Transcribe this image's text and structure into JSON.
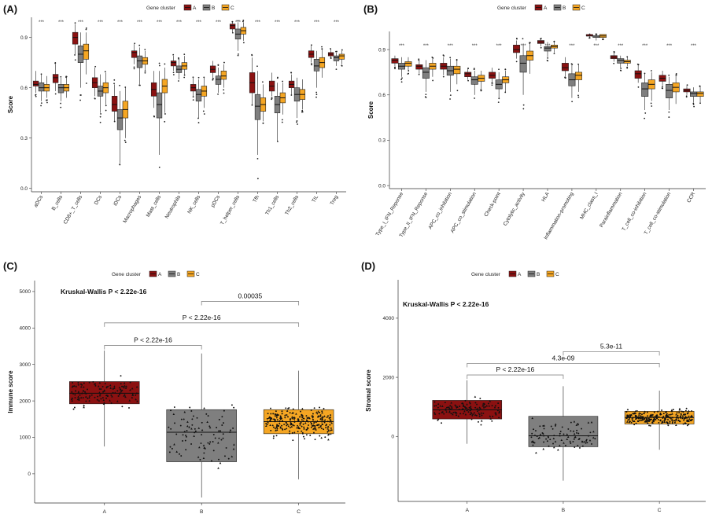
{
  "colors": {
    "A": "#8B1111",
    "B": "#7F7F7F",
    "C": "#F5A623"
  },
  "legend": {
    "title": "Gene cluster",
    "labels": [
      "A",
      "B",
      "C"
    ]
  },
  "chart_data": [
    {
      "panel": "(A)",
      "type": "box",
      "ylabel": "Score",
      "ylim": [
        -0.02,
        1.02
      ],
      "yticks": [
        "0.0",
        "0.3",
        "0.6",
        "0.9"
      ],
      "significance": "***",
      "categories": [
        "aDCs",
        "B_cells",
        "CD8+_T_cells",
        "DCs",
        "iDCs",
        "Macrophages",
        "Mast_cells",
        "Neutrophils",
        "NK_cells",
        "pDCs",
        "T_helper_cells",
        "Tfh",
        "Th1_cells",
        "Th2_cells",
        "TIL",
        "Treg"
      ],
      "series": [
        {
          "name": "A",
          "boxes": [
            [
              0.57,
              0.61,
              0.62,
              0.64,
              0.7
            ],
            [
              0.58,
              0.63,
              0.66,
              0.68,
              0.74
            ],
            [
              0.8,
              0.86,
              0.9,
              0.93,
              0.98
            ],
            [
              0.55,
              0.6,
              0.63,
              0.66,
              0.72
            ],
            [
              0.4,
              0.46,
              0.5,
              0.55,
              0.62
            ],
            [
              0.74,
              0.78,
              0.81,
              0.82,
              0.86
            ],
            [
              0.48,
              0.55,
              0.59,
              0.63,
              0.7
            ],
            [
              0.7,
              0.73,
              0.75,
              0.76,
              0.79
            ],
            [
              0.55,
              0.58,
              0.6,
              0.62,
              0.66
            ],
            [
              0.66,
              0.69,
              0.71,
              0.73,
              0.76
            ],
            [
              0.93,
              0.95,
              0.97,
              0.98,
              0.99
            ],
            [
              0.5,
              0.57,
              0.63,
              0.69,
              0.78
            ],
            [
              0.55,
              0.58,
              0.61,
              0.64,
              0.69
            ],
            [
              0.56,
              0.6,
              0.62,
              0.64,
              0.68
            ],
            [
              0.75,
              0.78,
              0.8,
              0.82,
              0.85
            ],
            [
              0.78,
              0.79,
              0.8,
              0.81,
              0.83
            ]
          ]
        },
        {
          "name": "B",
          "boxes": [
            [
              0.52,
              0.58,
              0.6,
              0.63,
              0.68
            ],
            [
              0.52,
              0.57,
              0.6,
              0.62,
              0.66
            ],
            [
              0.6,
              0.75,
              0.8,
              0.85,
              0.93
            ],
            [
              0.45,
              0.55,
              0.58,
              0.61,
              0.68
            ],
            [
              0.15,
              0.35,
              0.42,
              0.47,
              0.58
            ],
            [
              0.62,
              0.72,
              0.76,
              0.79,
              0.84
            ],
            [
              0.2,
              0.42,
              0.5,
              0.57,
              0.7
            ],
            [
              0.65,
              0.69,
              0.71,
              0.73,
              0.77
            ],
            [
              0.42,
              0.52,
              0.56,
              0.59,
              0.65
            ],
            [
              0.57,
              0.62,
              0.65,
              0.67,
              0.72
            ],
            [
              0.82,
              0.89,
              0.92,
              0.95,
              0.99
            ],
            [
              0.2,
              0.41,
              0.49,
              0.56,
              0.7
            ],
            [
              0.28,
              0.45,
              0.5,
              0.55,
              0.63
            ],
            [
              0.42,
              0.52,
              0.56,
              0.6,
              0.66
            ],
            [
              0.6,
              0.7,
              0.73,
              0.77,
              0.82
            ],
            [
              0.73,
              0.76,
              0.78,
              0.79,
              0.81
            ]
          ]
        },
        {
          "name": "C",
          "boxes": [
            [
              0.54,
              0.58,
              0.6,
              0.62,
              0.67
            ],
            [
              0.54,
              0.58,
              0.6,
              0.62,
              0.66
            ],
            [
              0.68,
              0.77,
              0.82,
              0.86,
              0.93
            ],
            [
              0.5,
              0.57,
              0.6,
              0.63,
              0.69
            ],
            [
              0.3,
              0.42,
              0.47,
              0.52,
              0.6
            ],
            [
              0.7,
              0.74,
              0.76,
              0.78,
              0.82
            ],
            [
              0.45,
              0.57,
              0.61,
              0.65,
              0.72
            ],
            [
              0.68,
              0.71,
              0.73,
              0.75,
              0.79
            ],
            [
              0.48,
              0.55,
              0.58,
              0.61,
              0.66
            ],
            [
              0.6,
              0.65,
              0.67,
              0.7,
              0.74
            ],
            [
              0.88,
              0.92,
              0.94,
              0.96,
              0.99
            ],
            [
              0.4,
              0.46,
              0.5,
              0.54,
              0.62
            ],
            [
              0.44,
              0.51,
              0.54,
              0.57,
              0.63
            ],
            [
              0.47,
              0.53,
              0.56,
              0.59,
              0.65
            ],
            [
              0.66,
              0.72,
              0.75,
              0.78,
              0.83
            ],
            [
              0.74,
              0.77,
              0.79,
              0.8,
              0.82
            ]
          ]
        }
      ]
    },
    {
      "panel": "(B)",
      "type": "box",
      "ylabel": "Score",
      "ylim": [
        -0.02,
        1.02
      ],
      "yticks": [
        "0.0",
        "0.3",
        "0.6",
        "0.9"
      ],
      "significance": "***",
      "categories": [
        "Type_I_IFN_Reponse",
        "Type_II_IFN_Reponse",
        "APC_co_inhibition",
        "APC_co_stimulation",
        "Check-point",
        "Cytolytic_activity",
        "HLA",
        "Inflammation-promoting",
        "MHC_class_I",
        "Parainflammation",
        "T_cell_co-inhibition",
        "T_cell_co-stimulation",
        "CCR"
      ],
      "series": [
        {
          "name": "A",
          "boxes": [
            [
              0.79,
              0.81,
              0.83,
              0.84,
              0.86
            ],
            [
              0.74,
              0.77,
              0.79,
              0.8,
              0.83
            ],
            [
              0.73,
              0.77,
              0.79,
              0.81,
              0.85
            ],
            [
              0.7,
              0.72,
              0.74,
              0.75,
              0.77
            ],
            [
              0.68,
              0.71,
              0.73,
              0.75,
              0.78
            ],
            [
              0.84,
              0.88,
              0.9,
              0.93,
              0.96
            ],
            [
              0.92,
              0.94,
              0.95,
              0.96,
              0.97
            ],
            [
              0.72,
              0.76,
              0.78,
              0.81,
              0.85
            ],
            [
              0.98,
              0.99,
              0.99,
              1.0,
              1.0
            ],
            [
              0.82,
              0.84,
              0.85,
              0.86,
              0.88
            ],
            [
              0.68,
              0.71,
              0.74,
              0.76,
              0.8
            ],
            [
              0.66,
              0.69,
              0.71,
              0.73,
              0.76
            ],
            [
              0.6,
              0.62,
              0.63,
              0.64,
              0.66
            ]
          ]
        },
        {
          "name": "B",
          "boxes": [
            [
              0.72,
              0.77,
              0.79,
              0.81,
              0.85
            ],
            [
              0.62,
              0.71,
              0.75,
              0.78,
              0.83
            ],
            [
              0.62,
              0.73,
              0.76,
              0.79,
              0.84
            ],
            [
              0.6,
              0.67,
              0.7,
              0.72,
              0.76
            ],
            [
              0.58,
              0.64,
              0.67,
              0.7,
              0.75
            ],
            [
              0.6,
              0.75,
              0.81,
              0.86,
              0.94
            ],
            [
              0.85,
              0.89,
              0.91,
              0.92,
              0.95
            ],
            [
              0.58,
              0.66,
              0.7,
              0.74,
              0.8
            ],
            [
              0.96,
              0.98,
              0.99,
              0.99,
              1.0
            ],
            [
              0.78,
              0.81,
              0.83,
              0.84,
              0.86
            ],
            [
              0.5,
              0.59,
              0.64,
              0.68,
              0.74
            ],
            [
              0.5,
              0.58,
              0.63,
              0.67,
              0.72
            ],
            [
              0.55,
              0.59,
              0.61,
              0.62,
              0.65
            ]
          ]
        },
        {
          "name": "C",
          "boxes": [
            [
              0.76,
              0.79,
              0.81,
              0.82,
              0.85
            ],
            [
              0.72,
              0.77,
              0.79,
              0.81,
              0.84
            ],
            [
              0.67,
              0.74,
              0.77,
              0.79,
              0.83
            ],
            [
              0.64,
              0.69,
              0.71,
              0.73,
              0.76
            ],
            [
              0.62,
              0.68,
              0.7,
              0.72,
              0.76
            ],
            [
              0.74,
              0.83,
              0.86,
              0.89,
              0.94
            ],
            [
              0.88,
              0.91,
              0.92,
              0.93,
              0.95
            ],
            [
              0.62,
              0.7,
              0.73,
              0.75,
              0.8
            ],
            [
              0.97,
              0.98,
              0.99,
              1.0,
              1.0
            ],
            [
              0.79,
              0.81,
              0.82,
              0.83,
              0.85
            ],
            [
              0.56,
              0.64,
              0.67,
              0.7,
              0.75
            ],
            [
              0.54,
              0.62,
              0.65,
              0.68,
              0.73
            ],
            [
              0.55,
              0.59,
              0.61,
              0.62,
              0.65
            ]
          ]
        }
      ]
    },
    {
      "panel": "(C)",
      "type": "box_jitter",
      "ylabel": "Immune score",
      "ylim": [
        -800,
        5300
      ],
      "yticks": [
        0,
        1000,
        2000,
        3000,
        4000,
        5000
      ],
      "categories": [
        "A",
        "B",
        "C"
      ],
      "boxes": [
        [
          750,
          1920,
          2210,
          2530,
          3380
        ],
        [
          -650,
          330,
          1140,
          1760,
          3300
        ],
        [
          -150,
          1100,
          1430,
          1760,
          2830
        ]
      ],
      "n_points": [
        130,
        95,
        260
      ],
      "annotation": "Kruskal-Wallis P < 2.22e-16",
      "comparisons": [
        {
          "pair": [
            "A",
            "B"
          ],
          "label": "P < 2.22e-16",
          "y": 3520
        },
        {
          "pair": [
            "A",
            "C"
          ],
          "label": "P < 2.22e-16",
          "y": 4140
        },
        {
          "pair": [
            "B",
            "C"
          ],
          "label": "0.00035",
          "y": 4730
        }
      ]
    },
    {
      "panel": "(D)",
      "type": "box_jitter",
      "ylabel": "Stromal score",
      "ylim": [
        -2200,
        5300
      ],
      "yticks": [
        0,
        2000,
        4000
      ],
      "categories": [
        "A",
        "B",
        "C"
      ],
      "boxes": [
        [
          -250,
          590,
          900,
          1220,
          1900
        ],
        [
          -1500,
          -350,
          20,
          680,
          1700
        ],
        [
          -450,
          420,
          640,
          850,
          1550
        ]
      ],
      "n_points": [
        130,
        95,
        260
      ],
      "annotation": "Kruskal-Wallis P < 2.22e-16",
      "comparisons": [
        {
          "pair": [
            "A",
            "B"
          ],
          "label": "P < 2.22e-16",
          "y": 2080
        },
        {
          "pair": [
            "A",
            "C"
          ],
          "label": "4.3e-09",
          "y": 2470
        },
        {
          "pair": [
            "B",
            "C"
          ],
          "label": "5.3e-11",
          "y": 2870
        }
      ]
    }
  ]
}
